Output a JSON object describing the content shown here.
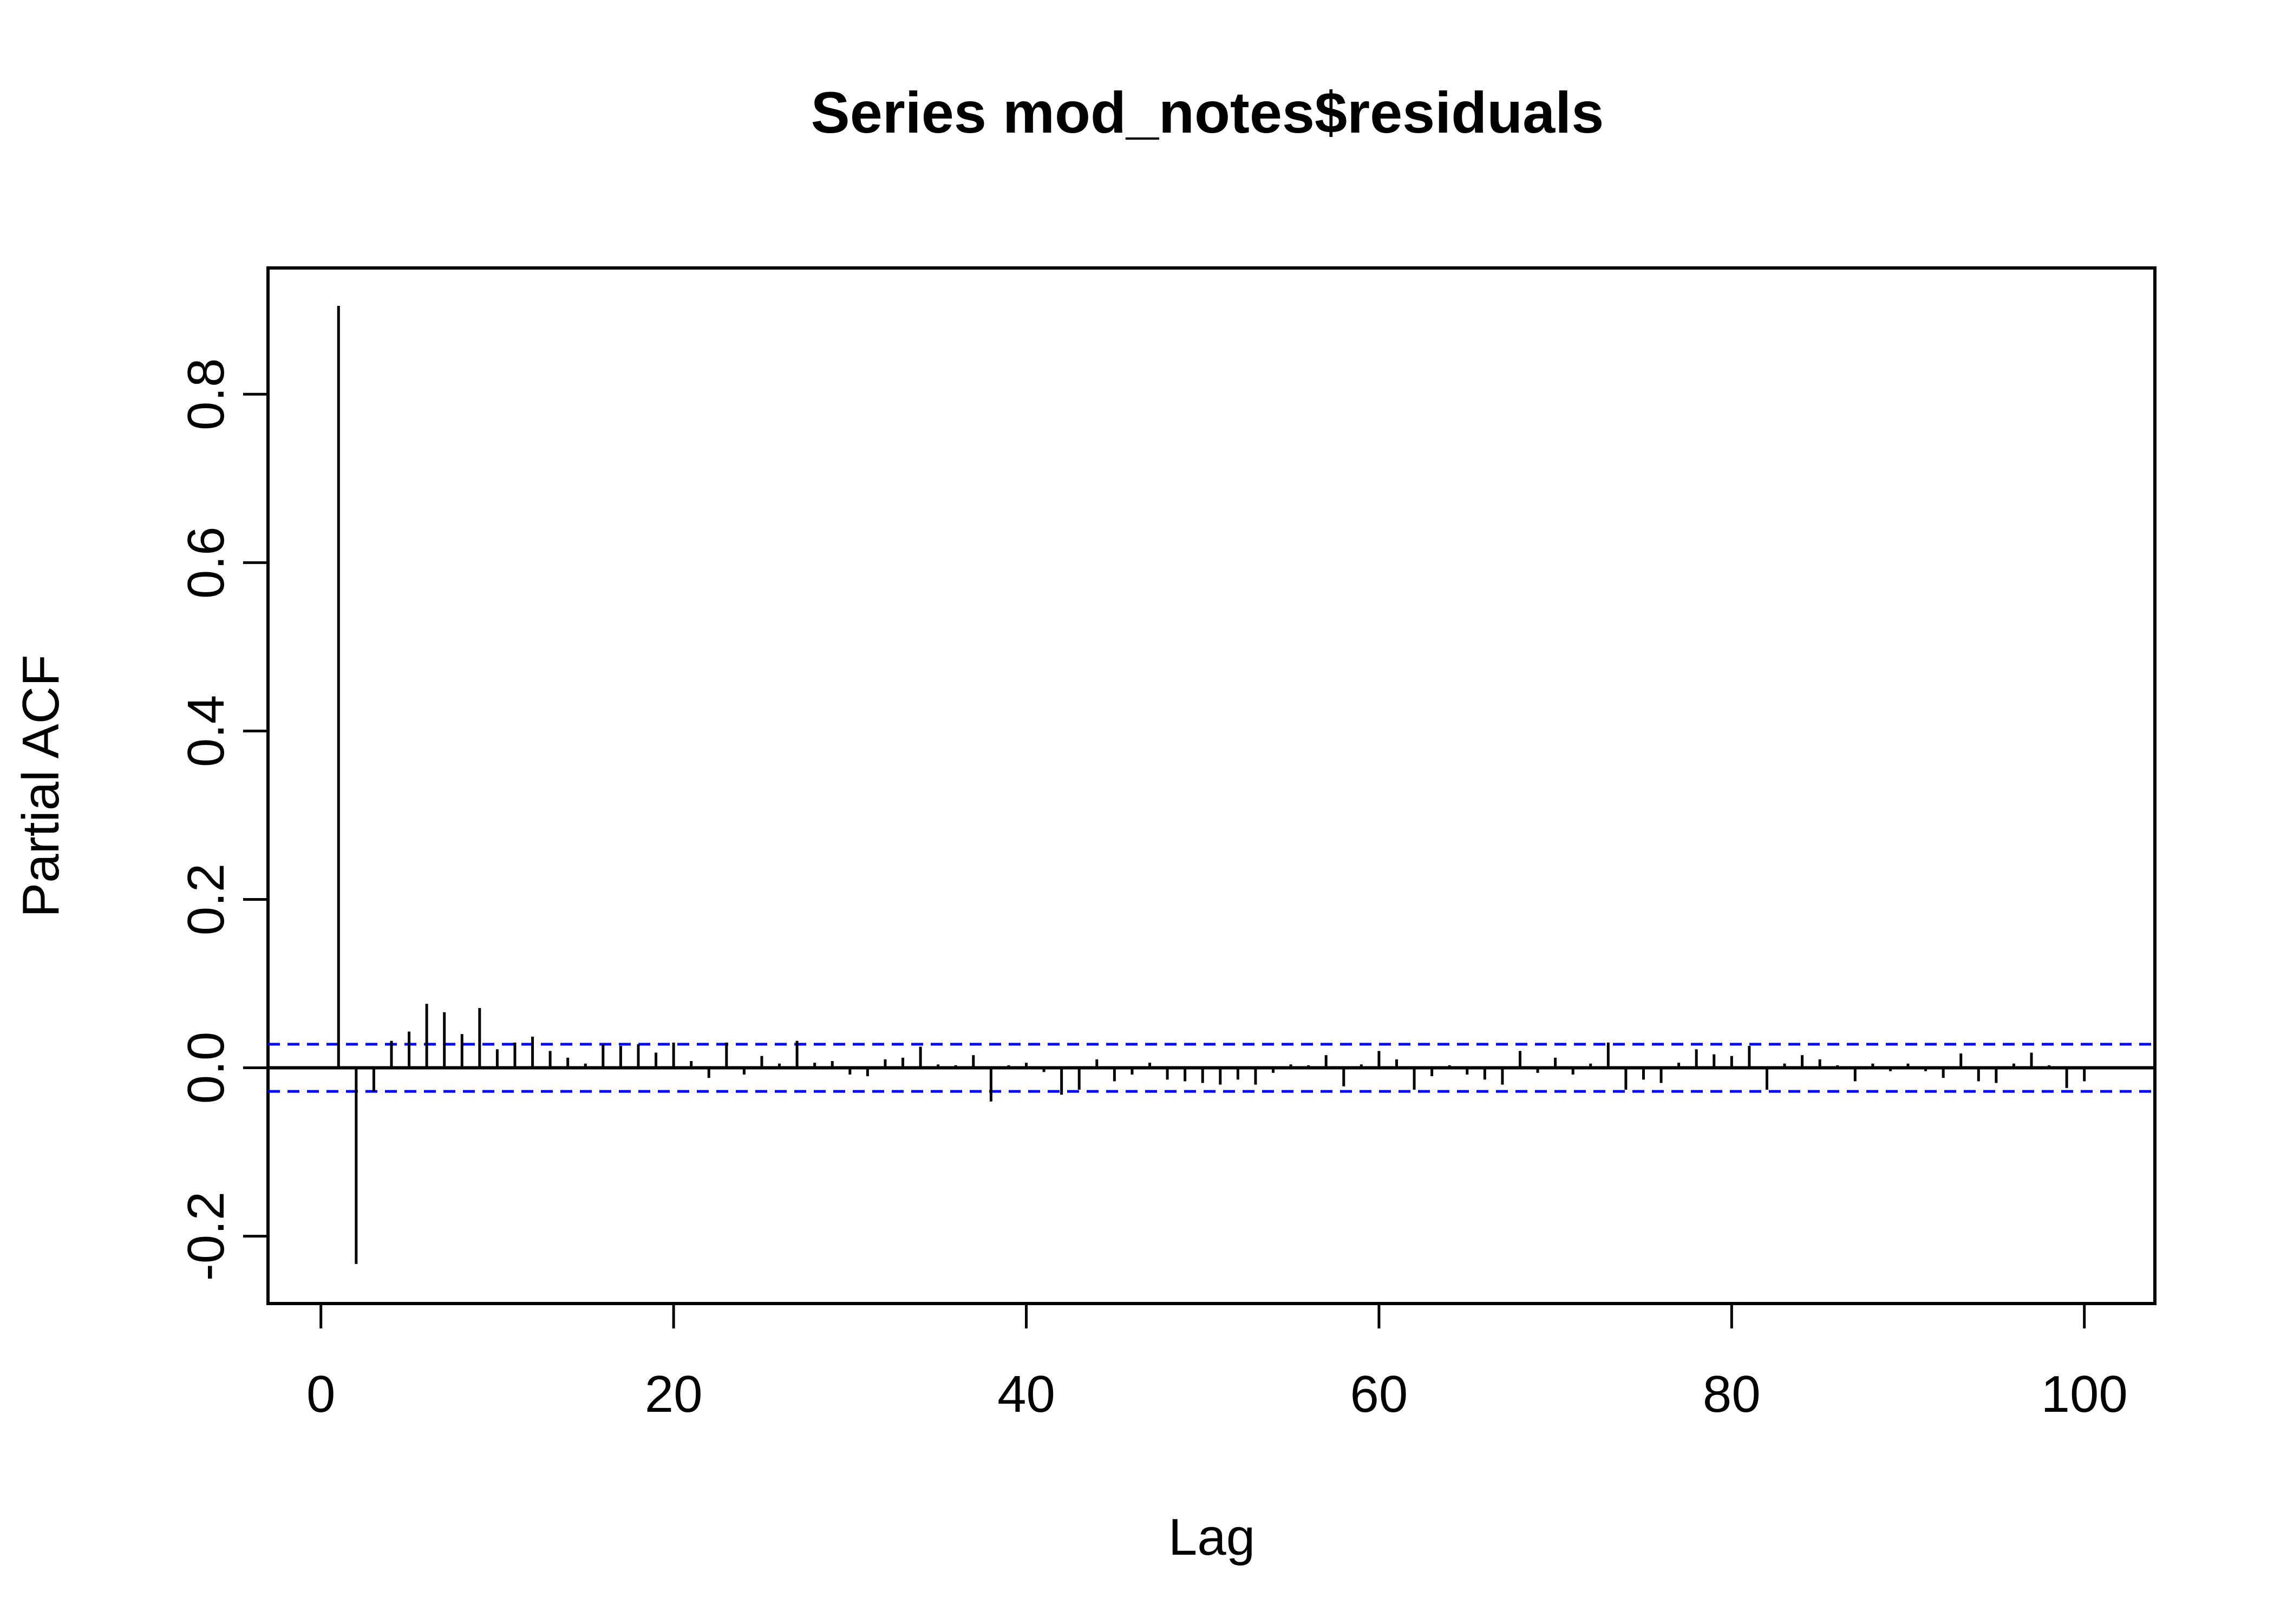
{
  "chart_data": {
    "type": "bar",
    "title": "Series  mod_notes$residuals",
    "xlabel": "Lag",
    "ylabel": "Partial ACF",
    "xlim": [
      -3,
      104
    ],
    "ylim": [
      -0.28,
      0.95
    ],
    "xticks": [
      0,
      20,
      40,
      60,
      80,
      100
    ],
    "xtick_labels": [
      "0",
      "20",
      "40",
      "60",
      "80",
      "100"
    ],
    "yticks": [
      -0.2,
      0.0,
      0.2,
      0.4,
      0.6,
      0.8
    ],
    "ytick_labels": [
      "-0.2",
      "0.0",
      "0.2",
      "0.4",
      "0.6",
      "0.8"
    ],
    "grid": false,
    "confidence_bound": 0.028,
    "colors": {
      "bars": "#000000",
      "bounds": "#0000ff",
      "axes": "#000000"
    },
    "x": [
      1,
      2,
      3,
      4,
      5,
      6,
      7,
      8,
      9,
      10,
      11,
      12,
      13,
      14,
      15,
      16,
      17,
      18,
      19,
      20,
      21,
      22,
      23,
      24,
      25,
      26,
      27,
      28,
      29,
      30,
      31,
      32,
      33,
      34,
      35,
      36,
      37,
      38,
      39,
      40,
      41,
      42,
      43,
      44,
      45,
      46,
      47,
      48,
      49,
      50,
      51,
      52,
      53,
      54,
      55,
      56,
      57,
      58,
      59,
      60,
      61,
      62,
      63,
      64,
      65,
      66,
      67,
      68,
      69,
      70,
      71,
      72,
      73,
      74,
      75,
      76,
      77,
      78,
      79,
      80,
      81,
      82,
      83,
      84,
      85,
      86,
      87,
      88,
      89,
      90,
      91,
      92,
      93,
      94,
      95,
      96,
      97,
      98,
      99,
      100
    ],
    "values": [
      0.905,
      -0.233,
      -0.028,
      0.032,
      0.043,
      0.076,
      0.066,
      0.04,
      0.071,
      0.022,
      0.03,
      0.037,
      0.02,
      0.012,
      0.005,
      0.028,
      0.026,
      0.028,
      0.018,
      0.03,
      0.008,
      -0.012,
      0.03,
      -0.008,
      0.014,
      0.005,
      0.032,
      0.006,
      0.008,
      -0.008,
      -0.01,
      0.01,
      0.012,
      0.025,
      0.004,
      0.003,
      0.015,
      -0.04,
      0.003,
      0.006,
      -0.005,
      -0.032,
      -0.026,
      0.01,
      -0.016,
      -0.008,
      0.006,
      -0.014,
      -0.016,
      -0.018,
      -0.02,
      -0.014,
      -0.02,
      -0.006,
      0.004,
      0.003,
      0.015,
      -0.022,
      0.004,
      0.02,
      0.01,
      -0.026,
      -0.01,
      0.003,
      -0.008,
      -0.014,
      -0.02,
      0.02,
      -0.006,
      0.012,
      -0.008,
      0.005,
      0.03,
      -0.026,
      -0.014,
      -0.018,
      0.006,
      0.022,
      0.016,
      0.014,
      0.026,
      -0.026,
      0.005,
      0.015,
      0.01,
      0.003,
      -0.016,
      0.005,
      -0.004,
      0.005,
      -0.004,
      -0.012,
      0.017,
      -0.016,
      -0.018,
      0.005,
      0.018,
      0.003,
      -0.024,
      -0.016
    ]
  }
}
